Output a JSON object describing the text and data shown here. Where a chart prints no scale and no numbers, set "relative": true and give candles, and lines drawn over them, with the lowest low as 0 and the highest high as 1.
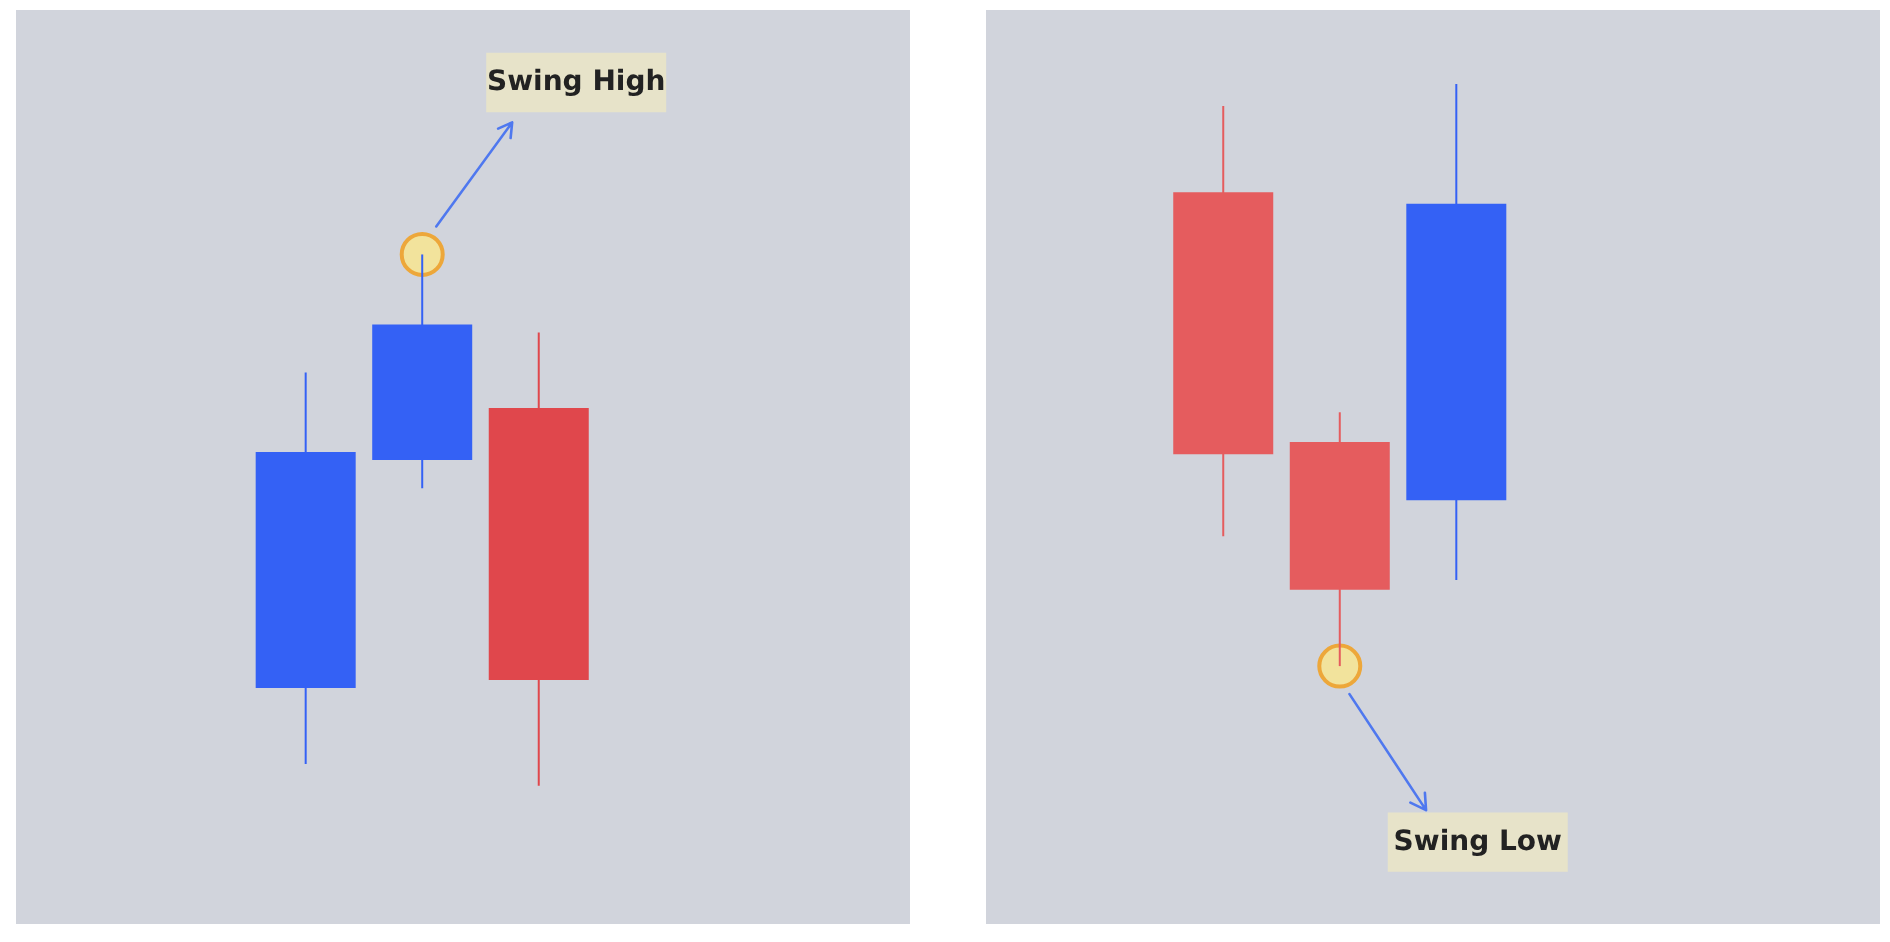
{
  "chart_data": [
    {
      "type": "candlestick",
      "relative": true,
      "categories": [
        null,
        null,
        null
      ],
      "ohlc": [
        [
          0.184,
          0.778,
          0.041,
          0.628
        ],
        [
          0.613,
          1,
          0.56,
          0.868
        ],
        [
          0.711,
          0.853,
          0,
          0.199
        ]
      ],
      "colors": [
        "#3461f5",
        "#3461f5",
        "#e0474c"
      ],
      "annotations": [
        "Swing High"
      ]
    },
    {
      "type": "candlestick",
      "relative": true,
      "categories": [
        null,
        null,
        null
      ],
      "ohlc": [
        [
          0.814,
          0.962,
          0.223,
          0.364
        ],
        [
          0.385,
          0.436,
          0,
          0.131
        ],
        [
          0.285,
          1,
          0.148,
          0.794
        ]
      ],
      "colors": [
        "#e55c5e",
        "#e55c5e",
        "#3461f5"
      ],
      "annotations": [
        "Swing Low"
      ]
    }
  ]
}
